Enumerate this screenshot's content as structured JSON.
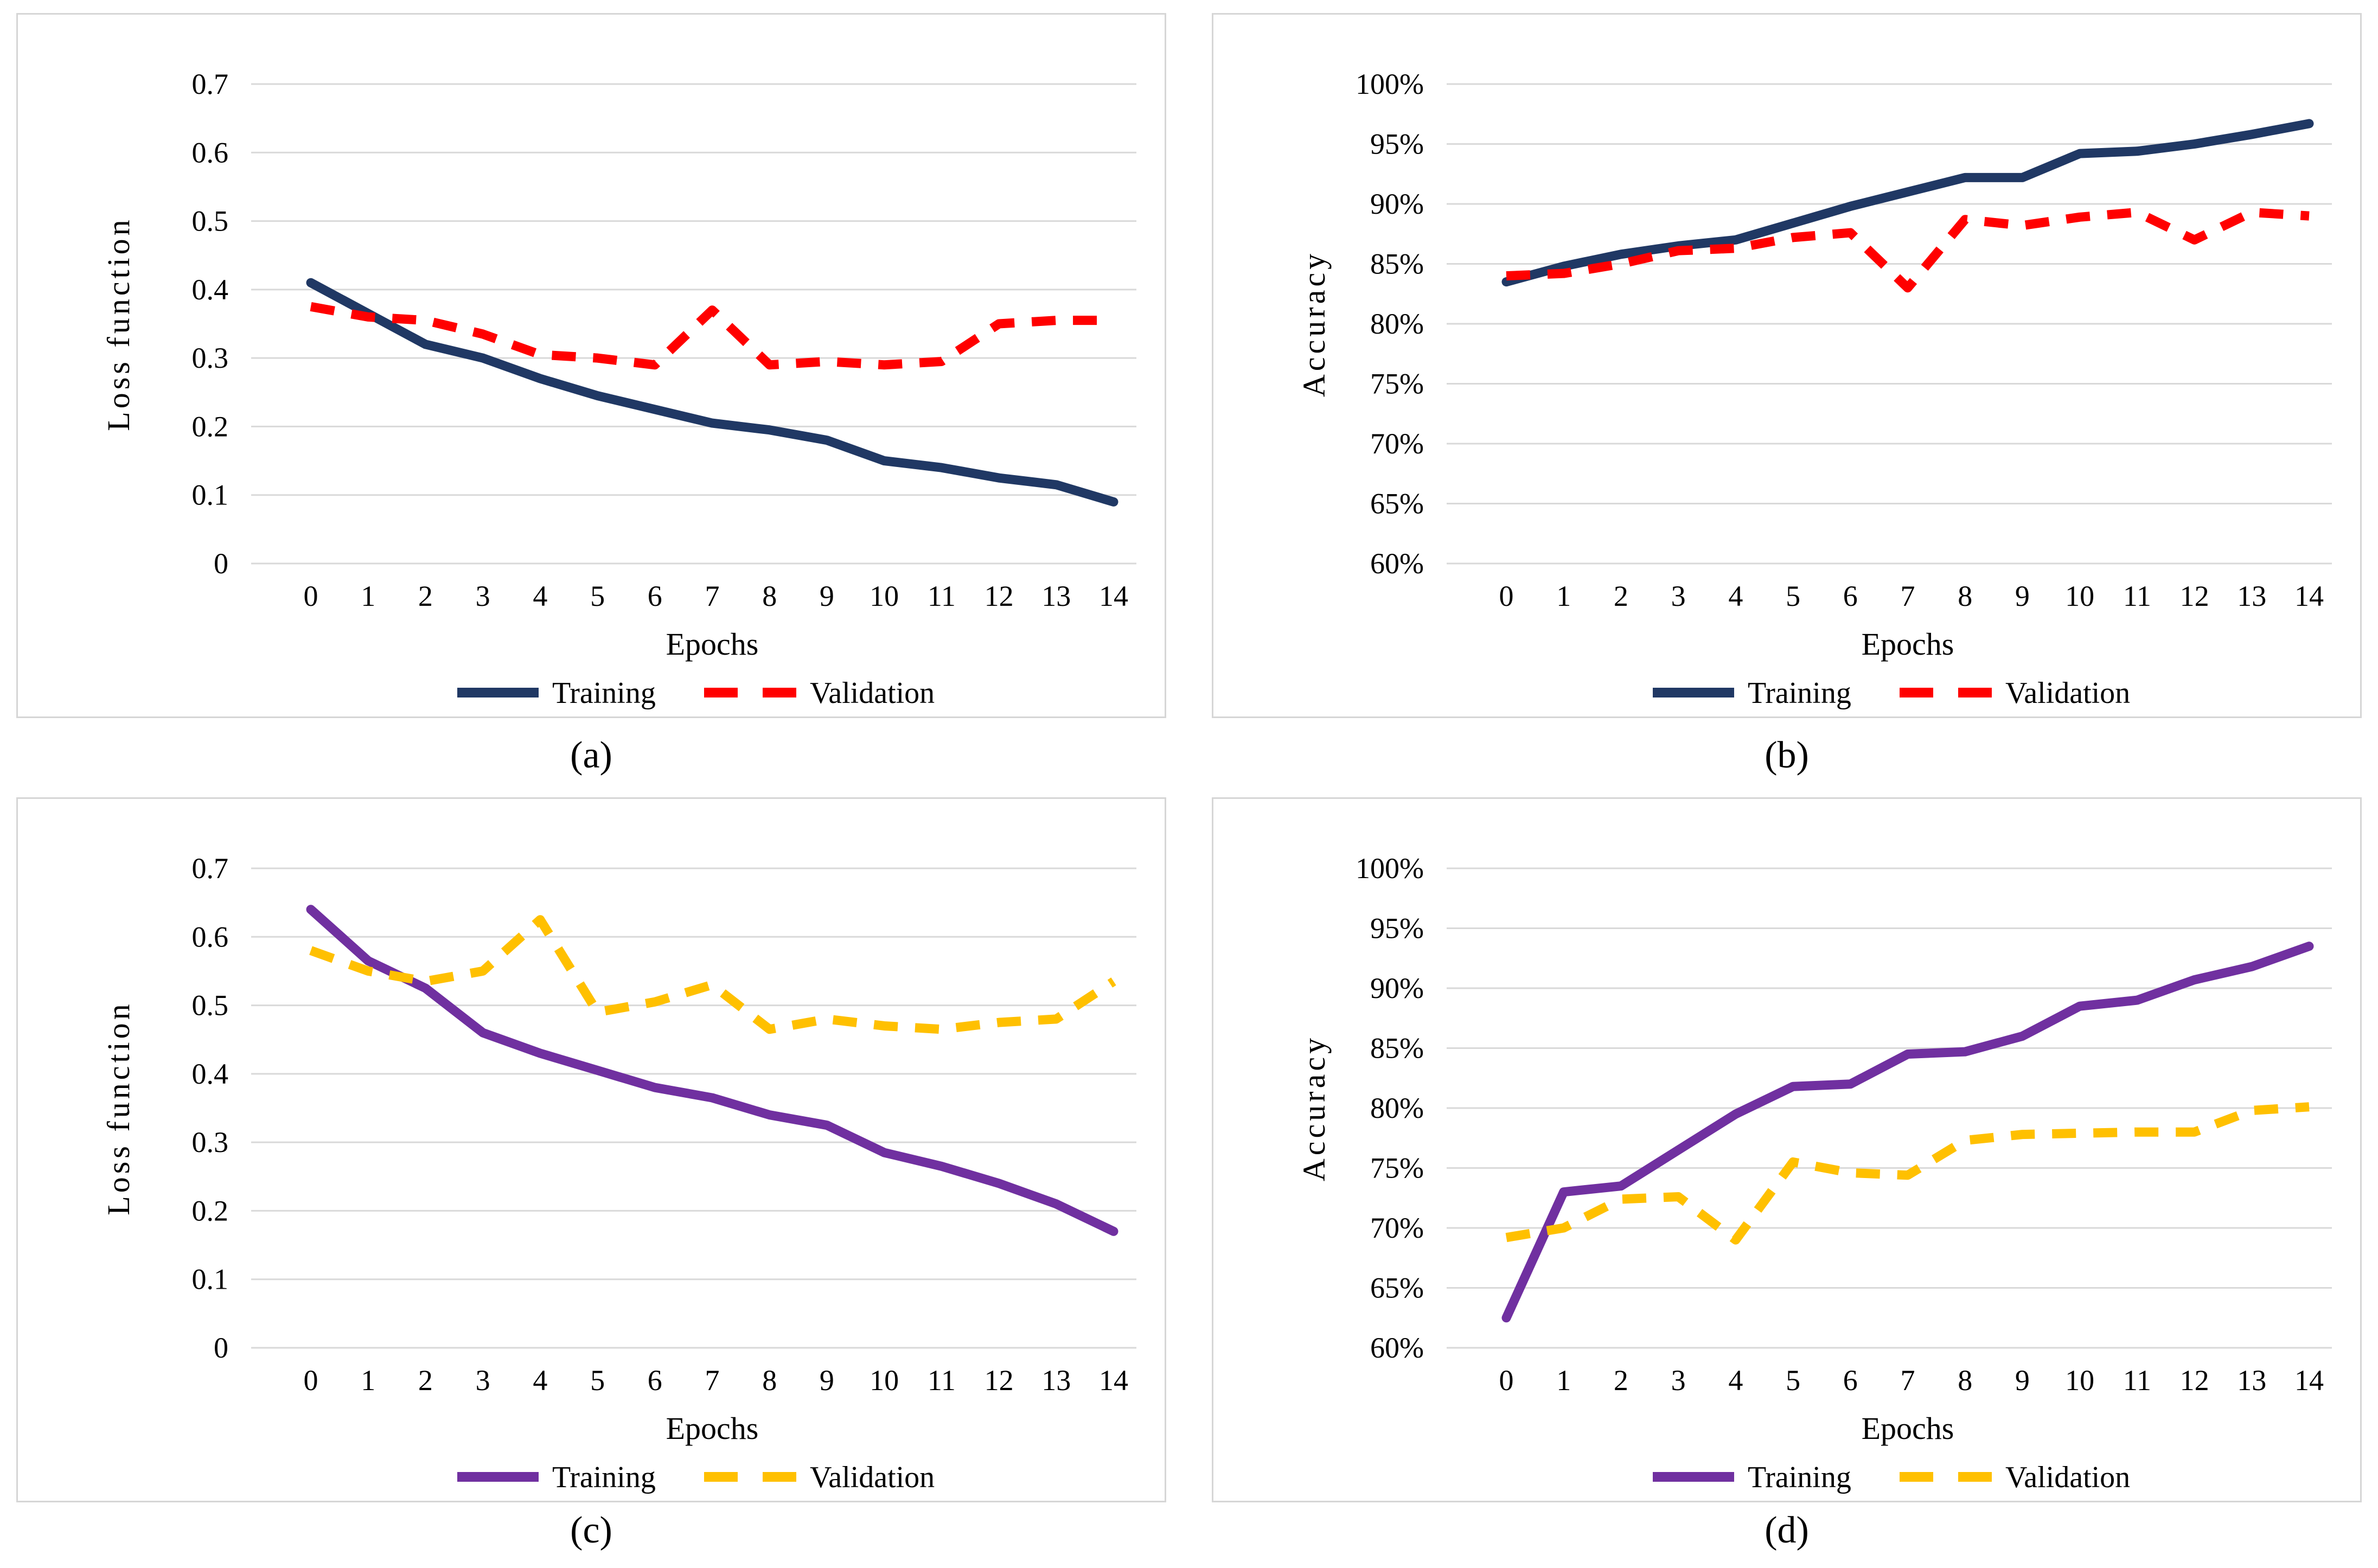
{
  "page": {
    "background": "#ffffff",
    "colors": {
      "grid": "#d9d9d9",
      "panel_border": "#d6d6d6",
      "text": "#000000",
      "navy": "#203864",
      "red": "#ff0000",
      "purple": "#7030a0",
      "gold": "#ffc000"
    }
  },
  "chart_data": [
    {
      "id": "a",
      "caption": "(a)",
      "type": "line",
      "title": "",
      "xlabel": "Epochs",
      "ylabel": "Loss function",
      "ylim": [
        0,
        0.7
      ],
      "grid": true,
      "legend_position": "bottom",
      "x": [
        0,
        1,
        2,
        3,
        4,
        5,
        6,
        7,
        8,
        9,
        10,
        11,
        12,
        13,
        14
      ],
      "x_tick_labels": [
        "0",
        "1",
        "2",
        "3",
        "4",
        "5",
        "6",
        "7",
        "8",
        "9",
        "10",
        "11",
        "12",
        "13",
        "14"
      ],
      "y_ticks": [
        {
          "label": "0.7",
          "value": 0.7
        },
        {
          "label": "0.6",
          "value": 0.6
        },
        {
          "label": "0.5",
          "value": 0.5
        },
        {
          "label": "0.4",
          "value": 0.4
        },
        {
          "label": "0.3",
          "value": 0.3
        },
        {
          "label": "0.2",
          "value": 0.2
        },
        {
          "label": "0.1",
          "value": 0.1
        },
        {
          "label": "0",
          "value": 0
        }
      ],
      "series": [
        {
          "name": "Training",
          "color": "#203864",
          "dashed": false,
          "values": [
            0.41,
            0.365,
            0.32,
            0.3,
            0.27,
            0.245,
            0.225,
            0.205,
            0.195,
            0.18,
            0.15,
            0.14,
            0.125,
            0.115,
            0.09
          ]
        },
        {
          "name": "Validation",
          "color": "#ff0000",
          "dashed": true,
          "values": [
            0.375,
            0.36,
            0.355,
            0.335,
            0.305,
            0.3,
            0.29,
            0.37,
            0.29,
            0.295,
            0.29,
            0.295,
            0.35,
            0.355,
            0.355
          ]
        }
      ]
    },
    {
      "id": "b",
      "caption": "(b)",
      "type": "line",
      "title": "",
      "xlabel": "Epochs",
      "ylabel": "Accuracy",
      "ylim": [
        60,
        100
      ],
      "grid": true,
      "legend_position": "bottom",
      "x": [
        0,
        1,
        2,
        3,
        4,
        5,
        6,
        7,
        8,
        9,
        10,
        11,
        12,
        13,
        14
      ],
      "x_tick_labels": [
        "0",
        "1",
        "2",
        "3",
        "4",
        "5",
        "6",
        "7",
        "8",
        "9",
        "10",
        "11",
        "12",
        "13",
        "14"
      ],
      "y_ticks": [
        {
          "label": "100%",
          "value": 100
        },
        {
          "label": "95%",
          "value": 95
        },
        {
          "label": "90%",
          "value": 90
        },
        {
          "label": "85%",
          "value": 85
        },
        {
          "label": "80%",
          "value": 80
        },
        {
          "label": "75%",
          "value": 75
        },
        {
          "label": "70%",
          "value": 70
        },
        {
          "label": "65%",
          "value": 65
        },
        {
          "label": "60%",
          "value": 60
        }
      ],
      "series": [
        {
          "name": "Training",
          "color": "#203864",
          "dashed": false,
          "values": [
            83.5,
            84.8,
            85.8,
            86.5,
            87.0,
            88.4,
            89.8,
            91.0,
            92.2,
            92.2,
            94.2,
            94.4,
            95.0,
            95.8,
            96.7
          ]
        },
        {
          "name": "Validation",
          "color": "#ff0000",
          "dashed": true,
          "values": [
            84.0,
            84.2,
            85.0,
            86.1,
            86.3,
            87.2,
            87.6,
            83.0,
            88.7,
            88.2,
            88.9,
            89.3,
            87.0,
            89.3,
            89.0
          ]
        }
      ]
    },
    {
      "id": "c",
      "caption": "(c)",
      "type": "line",
      "title": "",
      "xlabel": "Epochs",
      "ylabel": "Loss function",
      "ylim": [
        0,
        0.7
      ],
      "grid": true,
      "legend_position": "bottom",
      "x": [
        0,
        1,
        2,
        3,
        4,
        5,
        6,
        7,
        8,
        9,
        10,
        11,
        12,
        13,
        14
      ],
      "x_tick_labels": [
        "0",
        "1",
        "2",
        "3",
        "4",
        "5",
        "6",
        "7",
        "8",
        "9",
        "10",
        "11",
        "12",
        "13",
        "14"
      ],
      "y_ticks": [
        {
          "label": "0.7",
          "value": 0.7
        },
        {
          "label": "0.6",
          "value": 0.6
        },
        {
          "label": "0.5",
          "value": 0.5
        },
        {
          "label": "0.4",
          "value": 0.4
        },
        {
          "label": "0.3",
          "value": 0.3
        },
        {
          "label": "0.2",
          "value": 0.2
        },
        {
          "label": "0.1",
          "value": 0.1
        },
        {
          "label": "0",
          "value": 0
        }
      ],
      "series": [
        {
          "name": "Training",
          "color": "#7030a0",
          "dashed": false,
          "values": [
            0.64,
            0.565,
            0.525,
            0.46,
            0.43,
            0.405,
            0.38,
            0.365,
            0.34,
            0.325,
            0.285,
            0.265,
            0.24,
            0.21,
            0.17
          ]
        },
        {
          "name": "Validation",
          "color": "#ffc000",
          "dashed": true,
          "values": [
            0.58,
            0.55,
            0.535,
            0.55,
            0.625,
            0.49,
            0.505,
            0.53,
            0.465,
            0.48,
            0.47,
            0.465,
            0.475,
            0.48,
            0.535
          ]
        }
      ]
    },
    {
      "id": "d",
      "caption": "(d)",
      "type": "line",
      "title": "",
      "xlabel": "Epochs",
      "ylabel": "Accuracy",
      "ylim": [
        60,
        100
      ],
      "grid": true,
      "legend_position": "bottom",
      "x": [
        0,
        1,
        2,
        3,
        4,
        5,
        6,
        7,
        8,
        9,
        10,
        11,
        12,
        13,
        14
      ],
      "x_tick_labels": [
        "0",
        "1",
        "2",
        "3",
        "4",
        "5",
        "6",
        "7",
        "8",
        "9",
        "10",
        "11",
        "12",
        "13",
        "14"
      ],
      "y_ticks": [
        {
          "label": "100%",
          "value": 100
        },
        {
          "label": "95%",
          "value": 95
        },
        {
          "label": "90%",
          "value": 90
        },
        {
          "label": "85%",
          "value": 85
        },
        {
          "label": "80%",
          "value": 80
        },
        {
          "label": "75%",
          "value": 75
        },
        {
          "label": "70%",
          "value": 70
        },
        {
          "label": "65%",
          "value": 65
        },
        {
          "label": "60%",
          "value": 60
        }
      ],
      "series": [
        {
          "name": "Training",
          "color": "#7030a0",
          "dashed": false,
          "values": [
            62.5,
            73.0,
            73.5,
            76.5,
            79.5,
            81.8,
            82.0,
            84.5,
            84.7,
            86.0,
            88.5,
            89.0,
            90.7,
            91.8,
            93.5
          ]
        },
        {
          "name": "Validation",
          "color": "#ffc000",
          "dashed": true,
          "values": [
            69.2,
            70.0,
            72.4,
            72.6,
            69.0,
            75.5,
            74.6,
            74.4,
            77.3,
            77.8,
            77.9,
            78.0,
            78.0,
            79.8,
            80.1
          ]
        }
      ]
    }
  ]
}
